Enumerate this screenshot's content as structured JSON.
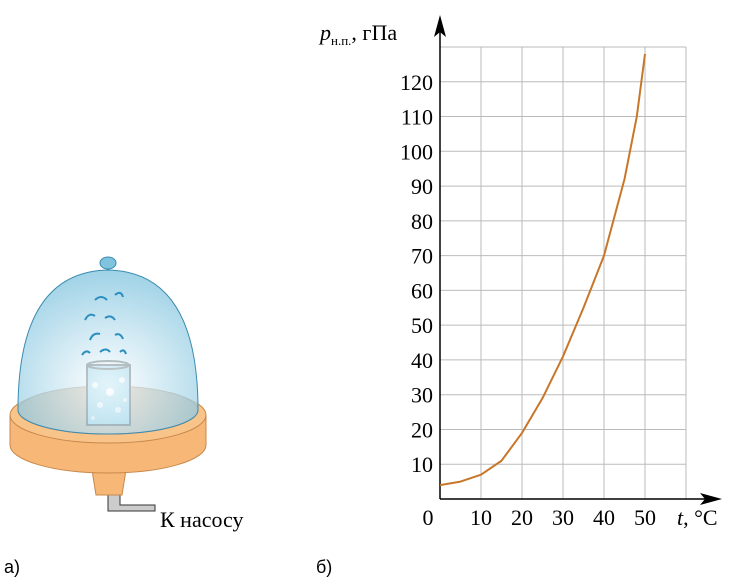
{
  "panels": {
    "left_label": "а)",
    "right_label": "б)",
    "pump_label": "К насосу"
  },
  "chart_data": {
    "type": "line",
    "y_label_parts": [
      "p",
      "н.п.",
      ", гПа"
    ],
    "x_label_parts": [
      "t",
      ", °C"
    ],
    "x": [
      0,
      5,
      10,
      15,
      20,
      25,
      30,
      35,
      40,
      45,
      48,
      50
    ],
    "series": [
      {
        "color": "#c8772a",
        "values": [
          4,
          5,
          7,
          11,
          19,
          29,
          41,
          55,
          70,
          92,
          110,
          128
        ]
      }
    ],
    "xlim": [
      0,
      60
    ],
    "ylim": [
      0,
      130
    ],
    "xticks": [
      0,
      10,
      20,
      30,
      40,
      50
    ],
    "yticks": [
      10,
      20,
      30,
      40,
      50,
      60,
      70,
      80,
      90,
      100,
      110,
      120
    ],
    "grid": true
  }
}
